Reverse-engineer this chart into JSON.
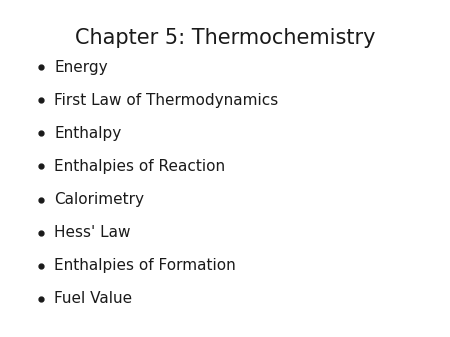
{
  "title": "Chapter 5: Thermochemistry",
  "title_fontsize": 15,
  "title_color": "#1a1a1a",
  "bullet_items": [
    "Energy",
    "First Law of Thermodynamics",
    "Enthalpy",
    "Enthalpies of Reaction",
    "Calorimetry",
    "Hess' Law",
    "Enthalpies of Formation",
    "Fuel Value"
  ],
  "bullet_fontsize": 11,
  "bullet_color": "#1a1a1a",
  "background_color": "#ffffff",
  "font_family": "DejaVu Sans"
}
